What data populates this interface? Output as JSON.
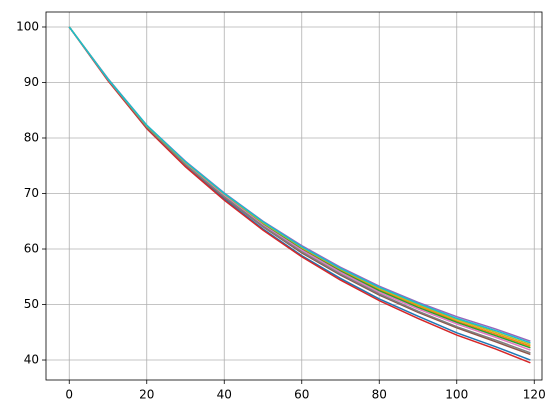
{
  "chart_data": {
    "type": "line",
    "x": [
      0,
      10,
      20,
      30,
      40,
      50,
      60,
      70,
      80,
      90,
      100,
      110,
      119
    ],
    "series": [
      {
        "color": "#1f77b4",
        "values": [
          100,
          90.4,
          81.8,
          74.9,
          69.0,
          63.6,
          58.8,
          54.7,
          51.0,
          47.9,
          44.9,
          42.4,
          40.0
        ]
      },
      {
        "color": "#ff7f0e",
        "values": [
          100,
          90.6,
          82.2,
          75.6,
          69.8,
          64.6,
          60.1,
          56.2,
          52.7,
          49.8,
          47.0,
          44.7,
          42.5
        ]
      },
      {
        "color": "#2ca02c",
        "values": [
          100,
          90.6,
          82.1,
          75.5,
          69.7,
          64.5,
          59.9,
          56.0,
          52.5,
          49.5,
          46.8,
          44.4,
          42.2
        ]
      },
      {
        "color": "#d62728",
        "values": [
          100,
          90.3,
          81.7,
          74.8,
          68.8,
          63.4,
          58.6,
          54.4,
          50.7,
          47.5,
          44.5,
          42.0,
          39.5
        ]
      },
      {
        "color": "#9467bd",
        "values": [
          100,
          90.7,
          82.3,
          75.8,
          70.1,
          65.0,
          60.6,
          56.7,
          53.3,
          50.4,
          47.8,
          45.6,
          43.4
        ]
      },
      {
        "color": "#8c564b",
        "values": [
          100,
          90.5,
          81.9,
          75.2,
          69.3,
          64.0,
          59.3,
          55.3,
          51.7,
          48.6,
          45.8,
          43.3,
          41.0
        ]
      },
      {
        "color": "#e377c2",
        "values": [
          100,
          90.5,
          82.1,
          75.4,
          69.6,
          64.3,
          59.8,
          55.8,
          52.2,
          49.2,
          46.5,
          44.1,
          41.8
        ]
      },
      {
        "color": "#7f7f7f",
        "values": [
          100,
          90.5,
          82.0,
          75.2,
          69.4,
          64.1,
          59.5,
          55.5,
          51.9,
          48.8,
          46.0,
          43.6,
          41.3
        ]
      },
      {
        "color": "#bcbd22",
        "values": [
          100,
          90.6,
          82.2,
          75.6,
          69.9,
          64.7,
          60.3,
          56.4,
          52.9,
          50.0,
          47.3,
          45.0,
          42.8
        ]
      },
      {
        "color": "#17becf",
        "values": [
          100,
          90.6,
          82.3,
          75.7,
          70.0,
          64.9,
          60.4,
          56.5,
          53.1,
          50.2,
          47.5,
          45.3,
          43.1
        ]
      }
    ],
    "xlim": [
      -6,
      122
    ],
    "ylim": [
      36.4,
      102.7
    ],
    "xticks": [
      0,
      20,
      40,
      60,
      80,
      100,
      120
    ],
    "yticks": [
      40,
      50,
      60,
      70,
      80,
      90,
      100
    ],
    "grid": true
  }
}
